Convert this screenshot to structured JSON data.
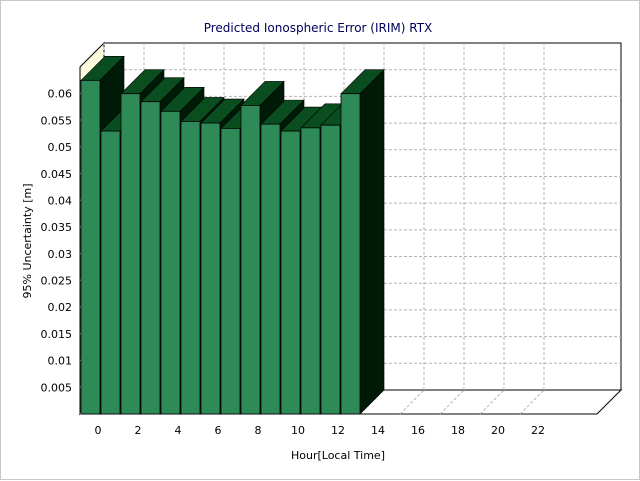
{
  "chart_data": {
    "type": "bar",
    "title": "Predicted Ionospheric Error (IRIM) RTX",
    "xlabel": "Hour[Local Time]",
    "ylabel": "95% Uncertainty [m]",
    "x": [
      0,
      1,
      2,
      3,
      4,
      5,
      6,
      7,
      8,
      9,
      10,
      11,
      12,
      13
    ],
    "values": [
      0.0625,
      0.053,
      0.06,
      0.0585,
      0.0567,
      0.0548,
      0.0545,
      0.0535,
      0.0578,
      0.0543,
      0.053,
      0.0536,
      0.0541,
      0.06
    ],
    "xlim": [
      0,
      25
    ],
    "ylim": [
      0,
      0.065
    ],
    "x_ticks": [
      0,
      2,
      4,
      6,
      8,
      10,
      12,
      14,
      16,
      18,
      20,
      22
    ],
    "x_tick_labels": [
      "0",
      "2",
      "4",
      "6",
      "8",
      "10",
      "12",
      "14",
      "16",
      "18",
      "20",
      "22"
    ],
    "y_ticks": [
      0.005,
      0.01,
      0.015,
      0.02,
      0.025,
      0.03,
      0.035,
      0.04,
      0.045,
      0.05,
      0.055,
      0.06
    ],
    "y_tick_labels": [
      "0.005",
      "0.01",
      "0.015",
      "0.02",
      "0.025",
      "0.03",
      "0.035",
      "0.04",
      "0.045",
      "0.05",
      "0.055",
      "0.06"
    ],
    "grid": true,
    "legend": "none",
    "colors": {
      "bar_front": "#2e8b57",
      "bar_top": "#0a4d1e",
      "bar_side": "#001a08",
      "wall": "#fffde0",
      "grid": "#b4b4b4",
      "title": "#00005a"
    }
  }
}
